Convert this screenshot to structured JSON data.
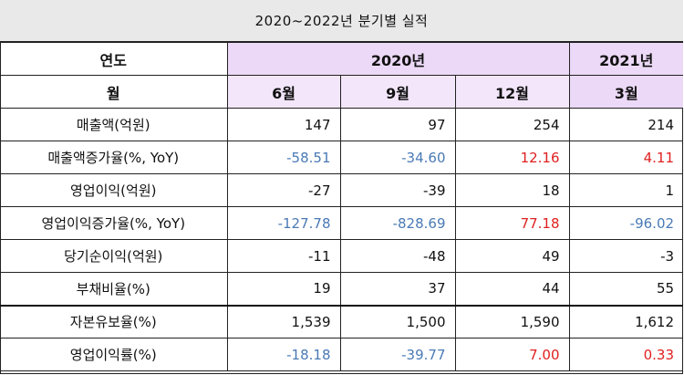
{
  "title": "2020~2022년 분기별 실적",
  "header": {
    "row1_label": "연도",
    "year_2020": "2020년",
    "year_2021": "2021년",
    "row2_label": "월",
    "months": [
      "6월",
      "9월",
      "12월",
      "3월"
    ]
  },
  "rows": [
    {
      "label": "매출액(억원)",
      "values": [
        "147",
        "97",
        "254",
        "214"
      ],
      "colors": [
        "blk",
        "blk",
        "blk",
        "blk"
      ]
    },
    {
      "label": "매출액증가율(%, YoY)",
      "values": [
        "-58.51",
        "-34.60",
        "12.16",
        "4.11"
      ],
      "colors": [
        "blue",
        "blue",
        "red",
        "red"
      ]
    },
    {
      "label": "영업이익(억원)",
      "values": [
        "-27",
        "-39",
        "18",
        "1"
      ],
      "colors": [
        "blk",
        "blk",
        "blk",
        "blk"
      ]
    },
    {
      "label": "영업이익증가율(%, YoY)",
      "values": [
        "-127.78",
        "-828.69",
        "77.18",
        "-96.02"
      ],
      "colors": [
        "blue",
        "blue",
        "red",
        "blue"
      ]
    },
    {
      "label": "당기순이익(억원)",
      "values": [
        "-11",
        "-48",
        "49",
        "-3"
      ],
      "colors": [
        "blk",
        "blk",
        "blk",
        "blk"
      ]
    },
    {
      "label": "부채비율(%)",
      "values": [
        "19",
        "37",
        "44",
        "55"
      ],
      "colors": [
        "blk",
        "blk",
        "blk",
        "blk"
      ]
    },
    {
      "label": "자본유보율(%)",
      "values": [
        "1,539",
        "1,500",
        "1,590",
        "1,612"
      ],
      "colors": [
        "blk",
        "blk",
        "blk",
        "blk"
      ]
    },
    {
      "label": "영업이익률(%)",
      "values": [
        "-18.18",
        "-39.77",
        "7.00",
        "0.33"
      ],
      "colors": [
        "blue",
        "blue",
        "red",
        "red"
      ]
    }
  ],
  "colors": {
    "negative": "#4a7ab5",
    "positive": "#e02020",
    "header_bg": "#ecd9f7",
    "title_bg": "#e9e9e9"
  }
}
